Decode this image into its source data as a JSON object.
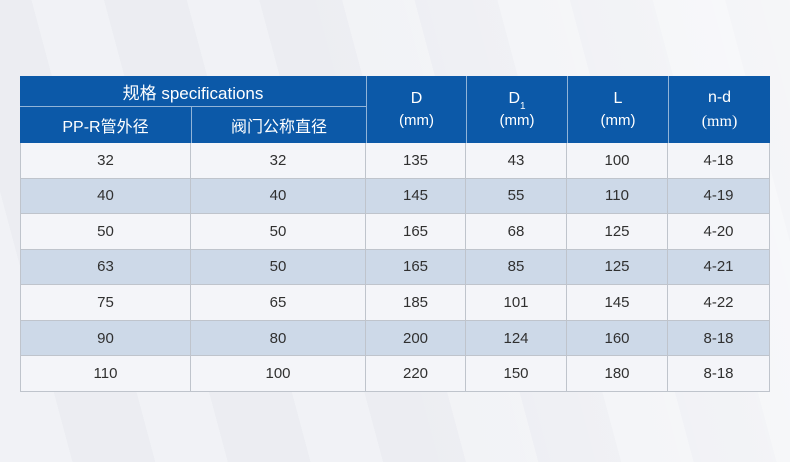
{
  "table": {
    "header": {
      "spec_group": {
        "title": "规格 specifications",
        "sub_columns": [
          "PP-R管外径",
          "阀门公称直径"
        ]
      },
      "dim_columns": [
        {
          "name": "D",
          "sub": "",
          "unit": "(mm)"
        },
        {
          "name": "D",
          "sub": "1",
          "unit": "(mm)"
        },
        {
          "name": "L",
          "sub": "",
          "unit": "(mm)"
        },
        {
          "name": "n-d",
          "sub": "",
          "unit": "(mm)"
        }
      ]
    },
    "rows": [
      [
        "32",
        "32",
        "135",
        "43",
        "100",
        "4-18"
      ],
      [
        "40",
        "40",
        "145",
        "55",
        "110",
        "4-19"
      ],
      [
        "50",
        "50",
        "165",
        "68",
        "125",
        "4-20"
      ],
      [
        "63",
        "50",
        "165",
        "85",
        "125",
        "4-21"
      ],
      [
        "75",
        "65",
        "185",
        "101",
        "145",
        "4-22"
      ],
      [
        "90",
        "80",
        "200",
        "124",
        "160",
        "8-18"
      ],
      [
        "110",
        "100",
        "220",
        "150",
        "180",
        "8-18"
      ]
    ]
  },
  "colors": {
    "header_blue": "#0c59a8",
    "row_base": "#f4f5f9",
    "row_alt": "#cdd9e8",
    "border": "#bfc4cc",
    "background": "#ecedf2",
    "header_text": "#ffffff",
    "body_text": "#303030"
  }
}
